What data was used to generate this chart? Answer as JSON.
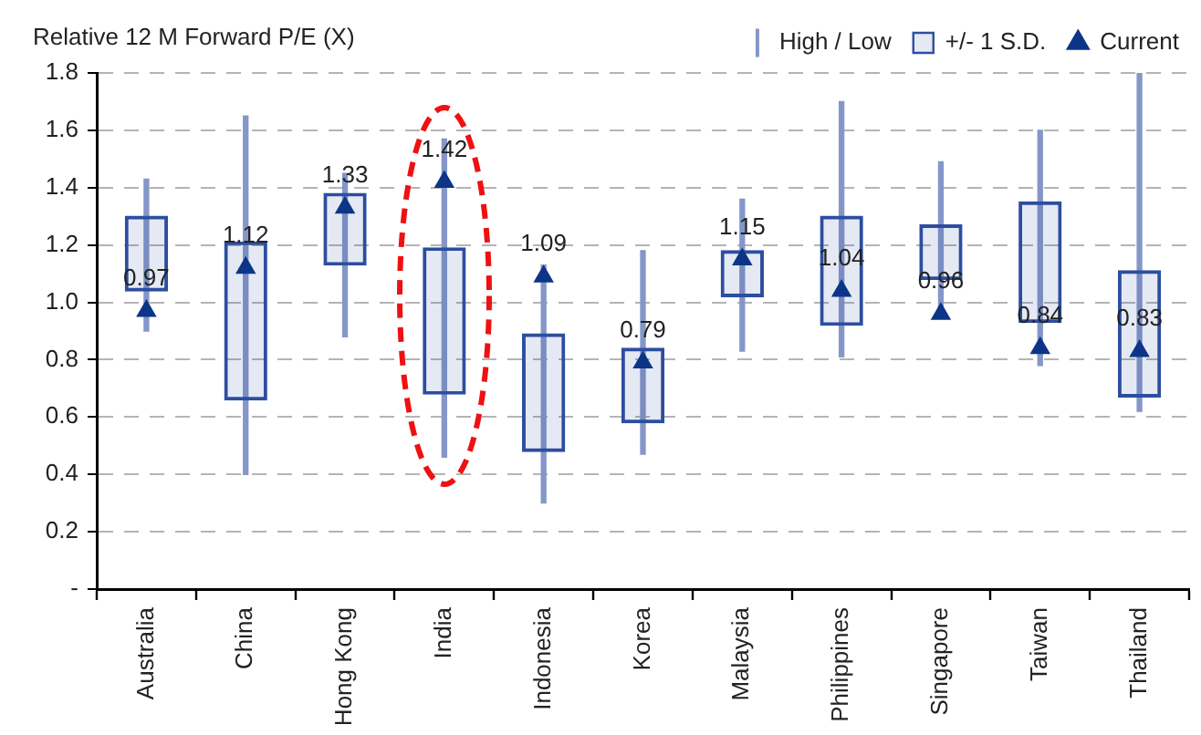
{
  "chart_data": {
    "type": "bar",
    "ylabel": "Relative 12 M Forward P/E (X)",
    "categories": [
      "Australia",
      "China",
      "Hong Kong",
      "India",
      "Indonesia",
      "Korea",
      "Malaysia",
      "Philippines",
      "Singapore",
      "Taiwan",
      "Thailand"
    ],
    "series": [
      {
        "name": "High / Low",
        "color": "#8497c8",
        "base": [
          0.9,
          0.4,
          0.88,
          0.46,
          0.3,
          0.47,
          0.83,
          0.81,
          0.95,
          0.78,
          0.62
        ],
        "values": [
          0.53,
          1.25,
          0.57,
          1.11,
          0.83,
          0.71,
          0.53,
          0.89,
          0.54,
          0.82,
          1.18
        ]
      },
      {
        "name": "+/- 1 S.D.",
        "color": "#2d4ea0",
        "base": [
          1.04,
          0.66,
          1.13,
          0.68,
          0.48,
          0.58,
          1.02,
          0.92,
          1.08,
          0.93,
          0.67
        ],
        "values": [
          0.26,
          0.55,
          0.25,
          0.51,
          0.41,
          0.26,
          0.16,
          0.38,
          0.19,
          0.42,
          0.44
        ]
      },
      {
        "name": "Current",
        "type": "scatter",
        "color": "#0c3587",
        "x": [
          "Australia",
          "China",
          "Hong Kong",
          "India",
          "Indonesia",
          "Korea",
          "Malaysia",
          "Philippines",
          "Singapore",
          "Taiwan",
          "Thailand"
        ],
        "values": [
          0.97,
          1.12,
          1.33,
          1.42,
          1.09,
          0.79,
          1.15,
          1.04,
          0.96,
          0.84,
          0.83
        ],
        "value_labels": [
          "0.97",
          "1.12",
          "1.33",
          "1.42",
          "1.09",
          "0.79",
          "1.15",
          "1.04",
          "0.96",
          "0.84",
          "0.83"
        ]
      }
    ],
    "ylim": [
      0,
      1.8
    ],
    "yticks": [
      {
        "value": 0,
        "label": "-"
      },
      0.2,
      0.4,
      0.6,
      0.8,
      {
        "value": 1,
        "label": "1.0"
      },
      1.2,
      1.4,
      1.6,
      1.8
    ],
    "grid": "y",
    "legend": "top right",
    "marker": "triangle"
  }
}
